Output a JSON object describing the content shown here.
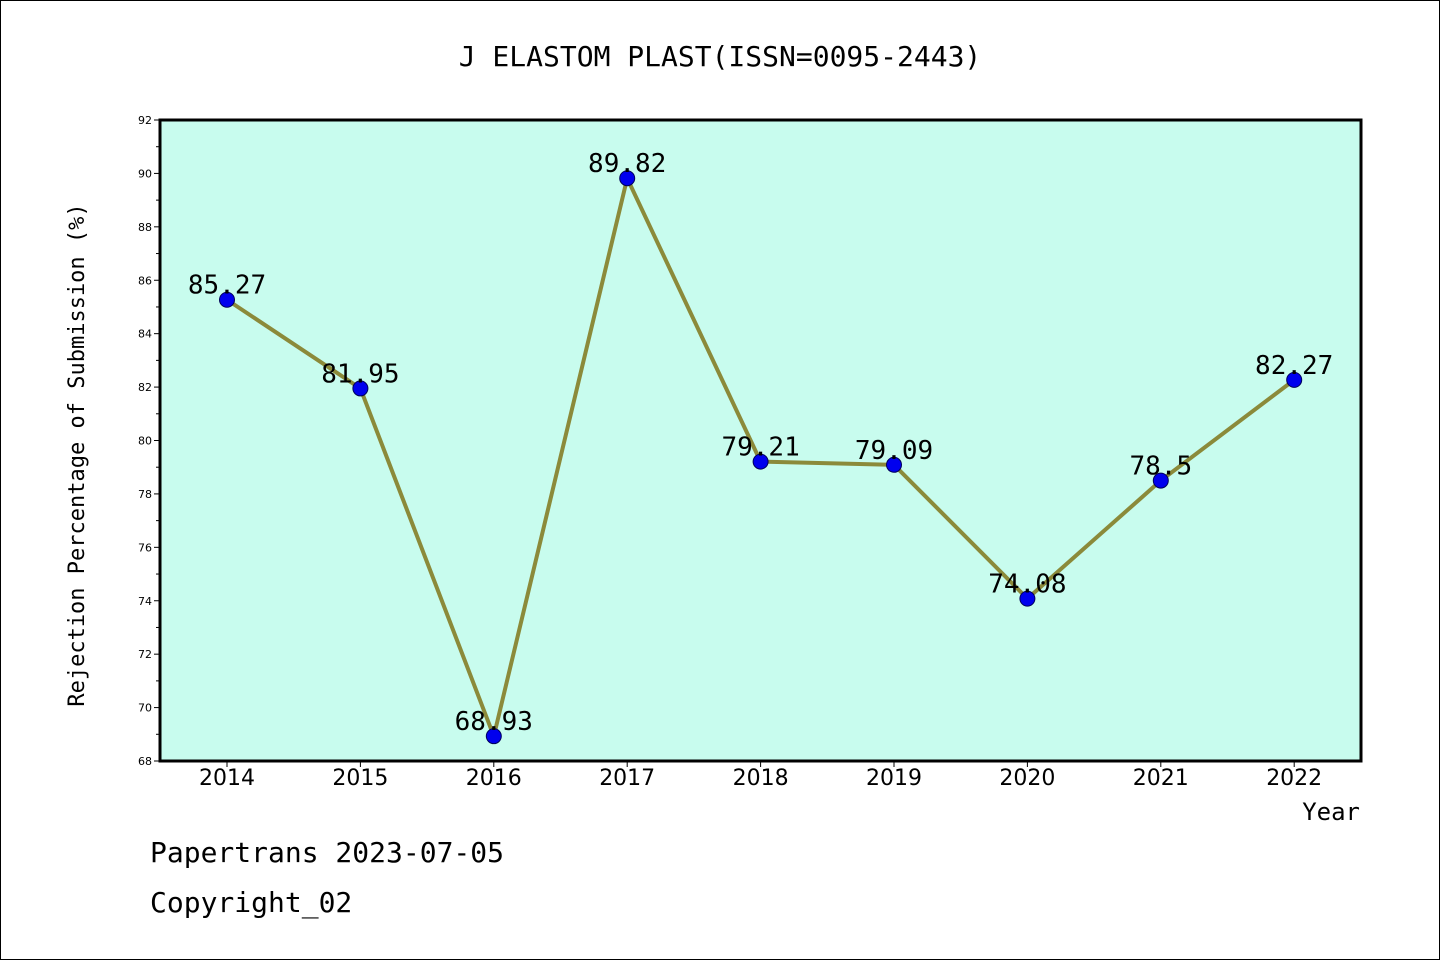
{
  "chart_data": {
    "type": "line",
    "title": "J ELASTOM PLAST(ISSN=0095-2443)",
    "xlabel": "Year",
    "ylabel": "Rejection Percentage of Submission (%)",
    "categories": [
      "2014",
      "2015",
      "2016",
      "2017",
      "2018",
      "2019",
      "2020",
      "2021",
      "2022"
    ],
    "values": [
      85.27,
      81.95,
      68.93,
      89.82,
      79.21,
      79.09,
      74.08,
      78.5,
      82.27
    ],
    "data_labels": [
      "85.27",
      "81.95",
      "68.93",
      "89.82",
      "79.21",
      "79.09",
      "74.08",
      "78.5",
      "82.27"
    ],
    "ylim": [
      68,
      92
    ],
    "yticks": [
      "68",
      "70",
      "72",
      "74",
      "76",
      "78",
      "80",
      "82",
      "84",
      "86",
      "88",
      "90",
      "92"
    ],
    "grid": false,
    "colors": {
      "plot_background": "#c8fcee",
      "line": "#8b8a3a",
      "marker": "#0000ee",
      "frame": "#000000"
    }
  },
  "footer": {
    "line1": "Papertrans 2023-07-05",
    "line2": "Copyright_02"
  }
}
